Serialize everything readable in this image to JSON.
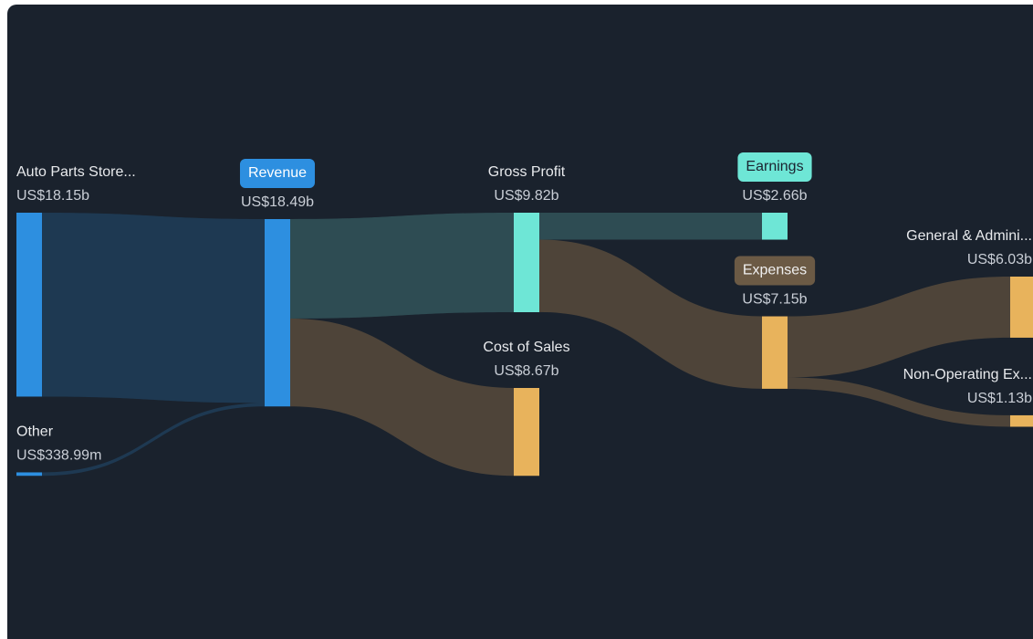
{
  "chart_data": {
    "type": "sankey",
    "nodes": [
      {
        "name": "Auto Parts Store...",
        "value": 18.15,
        "value_label": "US$18.15b",
        "color": "#2d8fe0"
      },
      {
        "name": "Other",
        "value": 0.33899,
        "value_label": "US$338.99m",
        "color": "#2d8fe0"
      },
      {
        "name": "Revenue",
        "value": 18.49,
        "value_label": "US$18.49b",
        "color": "#2d8fe0",
        "badge_color": "#2d8fe0",
        "badge_text_color": "#ffffff"
      },
      {
        "name": "Gross Profit",
        "value": 9.82,
        "value_label": "US$9.82b",
        "color": "#6ee6d6"
      },
      {
        "name": "Cost of Sales",
        "value": 8.67,
        "value_label": "US$8.67b",
        "color": "#e8b35c"
      },
      {
        "name": "Earnings",
        "value": 2.66,
        "value_label": "US$2.66b",
        "color": "#6ee6d6",
        "badge_color": "#6ee6d6",
        "badge_text_color": "#1b2330"
      },
      {
        "name": "Expenses",
        "value": 7.15,
        "value_label": "US$7.15b",
        "color": "#e8b35c",
        "badge_color": "#6b5a45",
        "badge_text_color": "#f0f0f0"
      },
      {
        "name": "General & Admini...",
        "value": 6.03,
        "value_label": "US$6.03b",
        "color": "#e8b35c"
      },
      {
        "name": "Non-Operating Ex...",
        "value": 1.13,
        "value_label": "US$1.13b",
        "color": "#e8b35c"
      }
    ],
    "links": [
      {
        "source": "Auto Parts Store...",
        "target": "Revenue",
        "value": 18.15,
        "color": "#1f3b54"
      },
      {
        "source": "Other",
        "target": "Revenue",
        "value": 0.33899,
        "color": "#1f3b54"
      },
      {
        "source": "Revenue",
        "target": "Gross Profit",
        "value": 9.82,
        "color": "#2f4f55"
      },
      {
        "source": "Revenue",
        "target": "Cost of Sales",
        "value": 8.67,
        "color": "#51473a"
      },
      {
        "source": "Gross Profit",
        "target": "Earnings",
        "value": 2.66,
        "color": "#2f4f55"
      },
      {
        "source": "Gross Profit",
        "target": "Expenses",
        "value": 7.15,
        "color": "#51473a"
      },
      {
        "source": "Expenses",
        "target": "General & Admini...",
        "value": 6.03,
        "color": "#51473a"
      },
      {
        "source": "Expenses",
        "target": "Non-Operating Ex...",
        "value": 1.13,
        "color": "#51473a"
      }
    ]
  }
}
